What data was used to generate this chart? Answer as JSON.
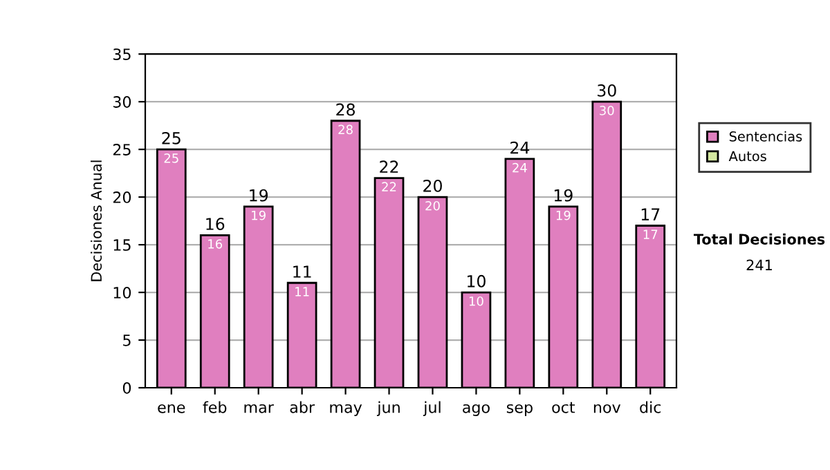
{
  "chart_data": {
    "type": "bar",
    "stacked": true,
    "ylabel": "Decisiones Anual",
    "categories": [
      "ene",
      "feb",
      "mar",
      "abr",
      "may",
      "jun",
      "jul",
      "ago",
      "sep",
      "oct",
      "nov",
      "dic"
    ],
    "series": [
      {
        "name": "Sentencias",
        "color": "#e07fbf",
        "values": [
          25,
          16,
          19,
          11,
          28,
          22,
          20,
          10,
          24,
          19,
          30,
          17
        ],
        "value_labels": [
          "25",
          "16",
          "19",
          "11",
          "28",
          "22",
          "20",
          "10",
          "24",
          "19",
          "30",
          "17"
        ]
      },
      {
        "name": "Autos",
        "color": "#d4e8a0",
        "values": [
          null,
          null,
          null,
          null,
          null,
          null,
          null,
          null,
          null,
          null,
          null,
          null
        ]
      }
    ],
    "totals": [
      "25",
      "16",
      "19",
      "11",
      "28",
      "22",
      "20",
      "10",
      "24",
      "19",
      "30",
      "17"
    ],
    "ylim": [
      0,
      35
    ],
    "yticks": [
      0,
      5,
      10,
      15,
      20,
      25,
      30,
      35
    ],
    "grid": "y",
    "legend": "right",
    "annotations": [
      "Total Decisiones",
      "241"
    ]
  }
}
